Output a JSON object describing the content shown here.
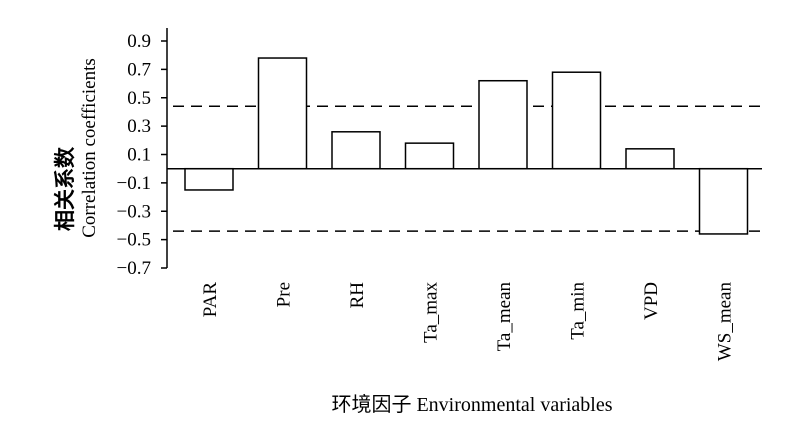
{
  "chart_data": {
    "type": "bar",
    "categories": [
      "PAR",
      "Pre",
      "RH",
      "Ta_max",
      "Ta_mean",
      "Ta_min",
      "VPD",
      "WS_mean"
    ],
    "values": [
      -0.15,
      0.78,
      0.26,
      0.18,
      0.62,
      0.68,
      0.14,
      -0.46
    ],
    "ylabel_cn": "相关系数",
    "ylabel_en": "Correlation coefficients",
    "xlabel": "环境因子 Environmental variables",
    "ylim": [
      -0.7,
      0.9
    ],
    "yticks": [
      0.9,
      0.7,
      0.5,
      0.3,
      0.1,
      -0.1,
      -0.3,
      -0.5,
      -0.7
    ],
    "significance_lines": [
      0.44,
      -0.44
    ],
    "grid": false,
    "legend": "none",
    "bar_fill": "#ffffff",
    "bar_stroke": "#000000"
  }
}
